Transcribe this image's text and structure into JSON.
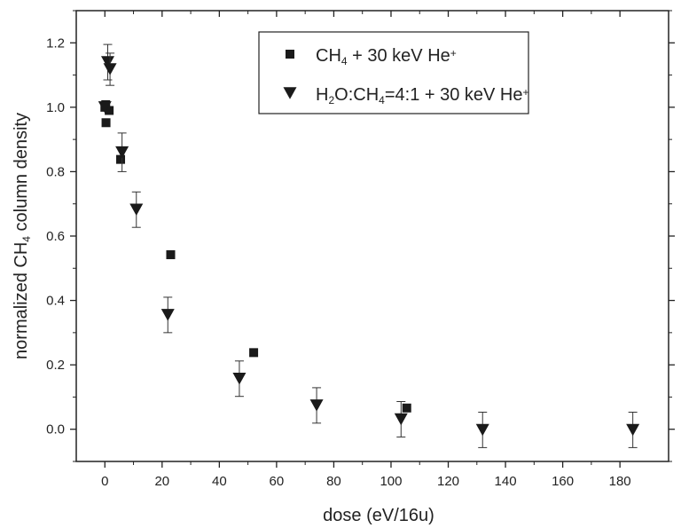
{
  "chart_data": {
    "type": "scatter",
    "xlabel": "dose (eV/16u)",
    "ylabel_parts": [
      "normalized CH",
      "4",
      " column density"
    ],
    "xlim": [
      -10,
      197
    ],
    "ylim": [
      -0.1,
      1.3
    ],
    "xticks": [
      0,
      20,
      40,
      60,
      80,
      100,
      120,
      140,
      160,
      180
    ],
    "yticks": [
      0.0,
      0.2,
      0.4,
      0.6,
      0.8,
      1.0,
      1.2
    ],
    "ytick_labels": [
      "0.0",
      "0.2",
      "0.4",
      "0.6",
      "0.8",
      "1.0",
      "1.2"
    ],
    "grid": false,
    "legend_position": "top-right",
    "series": [
      {
        "name_parts": [
          [
            "CH",
            "n"
          ],
          [
            "4",
            "sub"
          ],
          [
            " + 30 keV He",
            "n"
          ],
          [
            "+",
            "sup"
          ]
        ],
        "marker": "square",
        "color": "#1a1a1a",
        "points": [
          {
            "x": 0.0,
            "y": 1.0
          },
          {
            "x": 0.3,
            "y": 1.008
          },
          {
            "x": 0.4,
            "y": 0.952
          },
          {
            "x": 1.5,
            "y": 0.99
          },
          {
            "x": 5.5,
            "y": 0.838
          },
          {
            "x": 23.0,
            "y": 0.542
          },
          {
            "x": 52.0,
            "y": 0.238
          },
          {
            "x": 105.5,
            "y": 0.066
          }
        ]
      },
      {
        "name_parts": [
          [
            "H",
            "n"
          ],
          [
            "2",
            "sub"
          ],
          [
            "O:CH",
            "n"
          ],
          [
            "4",
            "sub"
          ],
          [
            "=4:1 + 30 keV He",
            "n"
          ],
          [
            "+",
            "sup"
          ]
        ],
        "marker": "triangle-down",
        "color": "#1a1a1a",
        "points": [
          {
            "x": 0.0,
            "y": 1.0,
            "err": 0.0
          },
          {
            "x": 1.0,
            "y": 1.14,
            "err": 0.055
          },
          {
            "x": 1.8,
            "y": 1.118,
            "err": 0.05
          },
          {
            "x": 6.0,
            "y": 0.86,
            "err": 0.06
          },
          {
            "x": 11.0,
            "y": 0.682,
            "err": 0.055
          },
          {
            "x": 22.0,
            "y": 0.355,
            "err": 0.055
          },
          {
            "x": 47.0,
            "y": 0.157,
            "err": 0.055
          },
          {
            "x": 74.0,
            "y": 0.074,
            "err": 0.055
          },
          {
            "x": 103.5,
            "y": 0.031,
            "err": 0.055
          },
          {
            "x": 132.0,
            "y": -0.002,
            "err": 0.055
          },
          {
            "x": 184.5,
            "y": -0.002,
            "err": 0.055
          }
        ]
      }
    ]
  }
}
